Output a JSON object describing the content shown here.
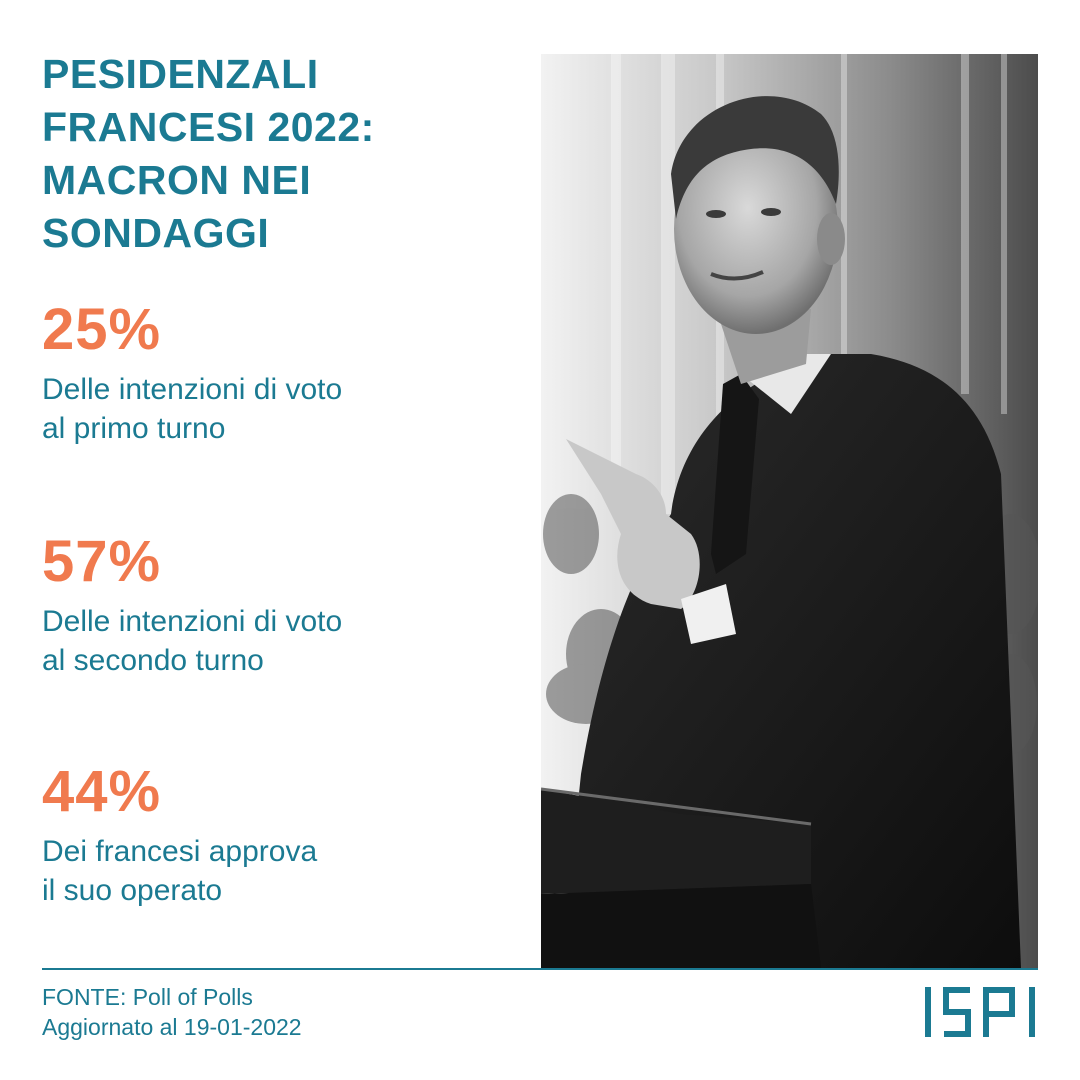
{
  "title": {
    "line1": "PESIDENZALI",
    "line2": "FRANCESI 2022:",
    "line3": "MACRON NEI",
    "line4": "SONDAGGI"
  },
  "stats": [
    {
      "value": "25%",
      "desc_line1": "Delle intenzioni di voto",
      "desc_line2": "al primo turno"
    },
    {
      "value": "57%",
      "desc_line1": "Delle intenzioni di voto",
      "desc_line2": "al secondo turno"
    },
    {
      "value": "44%",
      "desc_line1": "Dei francesi approva",
      "desc_line2": "il suo operato"
    }
  ],
  "footer": {
    "source": "FONTE: Poll of Polls",
    "updated": "Aggiornato al 19-01-2022"
  },
  "logo": {
    "text": "ISPI"
  },
  "colors": {
    "title": "#1b7a92",
    "accent": "#f07a4e",
    "background": "#ffffff"
  }
}
